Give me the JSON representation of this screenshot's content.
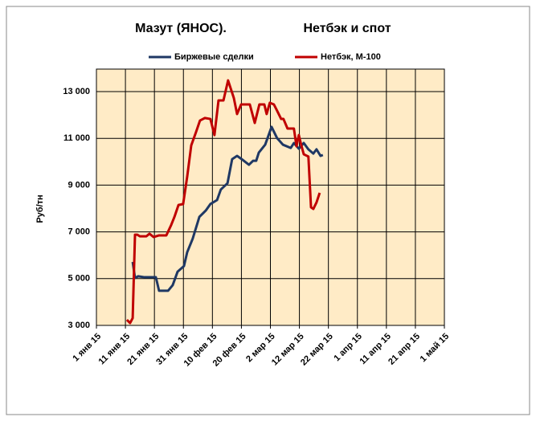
{
  "chart_data": {
    "type": "line",
    "title": "Мазут (ЯНОС).",
    "subtitle": "Нетбэк и спот",
    "ylabel": "Руб/тн",
    "xlim": [
      0,
      120
    ],
    "ylim": [
      3000,
      13000
    ],
    "xticks": [
      {
        "value": 0,
        "label": "1 янв 15"
      },
      {
        "value": 10,
        "label": "11 янв 15"
      },
      {
        "value": 20,
        "label": "21 янв 15"
      },
      {
        "value": 30,
        "label": "31 янв 15"
      },
      {
        "value": 40,
        "label": "10 фев 15"
      },
      {
        "value": 50,
        "label": "20 фев 15"
      },
      {
        "value": 60,
        "label": "2 мар 15"
      },
      {
        "value": 70,
        "label": "12 мар 15"
      },
      {
        "value": 80,
        "label": "22 мар 15"
      },
      {
        "value": 90,
        "label": "1 апр 15"
      },
      {
        "value": 100,
        "label": "11 апр 15"
      },
      {
        "value": 110,
        "label": "21 апр 15"
      },
      {
        "value": 120,
        "label": "1 май 15"
      }
    ],
    "yticks": [
      {
        "value": 3000,
        "label": "3 000"
      },
      {
        "value": 5000,
        "label": "5 000"
      },
      {
        "value": 7000,
        "label": "7 000"
      },
      {
        "value": 9000,
        "label": "9 000"
      },
      {
        "value": 11000,
        "label": "11 000"
      },
      {
        "value": 13000,
        "label": "13 000"
      }
    ],
    "grid": true,
    "legend": "top",
    "background": "#ffebc6",
    "series": [
      {
        "name": "Биржевые сделки",
        "color": "#1f3864",
        "x": [
          12.5,
          13.3,
          14.4,
          16.6,
          20.5,
          21.6,
          24.7,
          26.3,
          28,
          30.2,
          31.3,
          33.2,
          35.5,
          37.7,
          39.3,
          41.6,
          42.9,
          45.2,
          46.8,
          48.5,
          50.1,
          52.6,
          54,
          55.1,
          56,
          58.2,
          60.4,
          62.3,
          64.3,
          67,
          68.1,
          69.8,
          71.5,
          73.1,
          74.8,
          75.9,
          77.3,
          78.1
        ],
        "values": [
          5715,
          5030,
          5100,
          5060,
          5060,
          4480,
          4480,
          4720,
          5300,
          5540,
          6130,
          6710,
          7640,
          7910,
          8190,
          8360,
          8810,
          9080,
          10110,
          10250,
          10110,
          9870,
          10040,
          10040,
          10390,
          10730,
          11490,
          11010,
          10730,
          10590,
          10800,
          10560,
          10800,
          10530,
          10350,
          10530,
          10250,
          10290
        ]
      },
      {
        "name": "Нетбэк, М-100",
        "color": "#c00000",
        "x": [
          10.5,
          11.6,
          12.5,
          13.3,
          14.1,
          15,
          17.2,
          18.3,
          19.7,
          21.6,
          24.1,
          25.8,
          26.9,
          28.3,
          29.9,
          31.3,
          32.7,
          34.3,
          35.7,
          37.4,
          39.3,
          40.7,
          42.1,
          43.8,
          45.4,
          47.4,
          48.5,
          49.9,
          52.9,
          54.6,
          56.2,
          57.9,
          58.7,
          59.8,
          61.2,
          62.3,
          63.7,
          64.5,
          65.9,
          68.1,
          69,
          69.8,
          70.6,
          71.5,
          73.1,
          74,
          74.8,
          75.9,
          77
        ],
        "values": [
          3240,
          3100,
          3310,
          6880,
          6880,
          6810,
          6810,
          6920,
          6780,
          6850,
          6850,
          7300,
          7640,
          8150,
          8190,
          9360,
          10700,
          11250,
          11760,
          11870,
          11830,
          11140,
          12620,
          12620,
          13480,
          12720,
          12040,
          12450,
          12450,
          11660,
          12450,
          12450,
          12040,
          12520,
          12450,
          12180,
          11830,
          11830,
          11420,
          11420,
          10660,
          11140,
          10730,
          10320,
          10220,
          8050,
          7980,
          8260,
          8670
        ]
      }
    ]
  }
}
